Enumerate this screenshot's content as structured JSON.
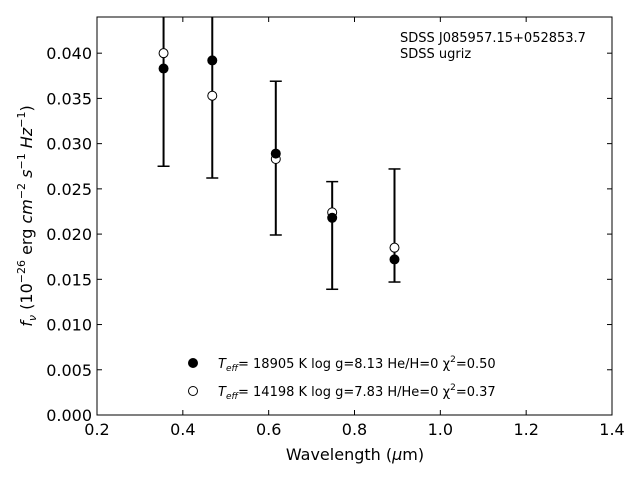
{
  "chart_data": {
    "type": "scatter",
    "xlabel": "Wavelength (μm)",
    "ylabel": "f_ν (10^-26 erg cm^-2 s^-1 Hz^-1)",
    "xlim": [
      0.2,
      1.4
    ],
    "ylim": [
      0.0,
      0.044
    ],
    "xticks": [
      "0.2",
      "0.4",
      "0.6",
      "0.8",
      "1.0",
      "1.2",
      "1.4"
    ],
    "yticks": [
      "0.000",
      "0.005",
      "0.010",
      "0.015",
      "0.020",
      "0.025",
      "0.030",
      "0.035",
      "0.040"
    ],
    "annotations": [
      "SDSS J085957.15+052853.7",
      "SDSS ugriz"
    ],
    "observations": {
      "x": [
        0.3551,
        0.4686,
        0.6166,
        0.748,
        0.8932
      ],
      "y": [
        0.0383,
        0.0392,
        0.0289,
        0.0218,
        0.0172
      ],
      "yerr_low": [
        0.0275,
        0.0262,
        0.0199,
        0.0139,
        0.0147
      ],
      "yerr_high": [
        0.0495,
        0.0522,
        0.0369,
        0.0258,
        0.0272
      ]
    },
    "series": [
      {
        "marker": "filled-circle",
        "label_parts": [
          "T",
          "eff",
          "= 18905 K  log g=8.13  He/H=0  χ",
          "2",
          "=0.50"
        ],
        "y": [
          0.0383,
          0.0392,
          0.0289,
          0.0218,
          0.0172
        ]
      },
      {
        "marker": "open-circle",
        "label_parts": [
          "T",
          "eff",
          "= 14198 K  log g=7.83  H/He=0  χ",
          "2",
          "=0.37"
        ],
        "y": [
          0.04,
          0.0353,
          0.0283,
          0.0224,
          0.0185
        ]
      }
    ]
  }
}
